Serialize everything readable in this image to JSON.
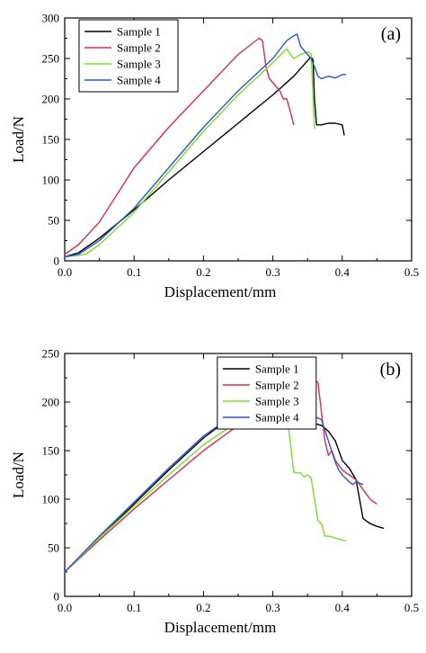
{
  "chart_data": [
    {
      "type": "line",
      "panel_label": "(a)",
      "xlabel": "Displacement/mm",
      "ylabel": "Load/N",
      "xlim": [
        0,
        0.5
      ],
      "ylim": [
        0,
        300
      ],
      "x_ticks": [
        0.0,
        0.1,
        0.2,
        0.3,
        0.4,
        0.5
      ],
      "x_tick_labels": [
        "0.0",
        "0.1",
        "0.2",
        "0.3",
        "0.4",
        "0.5"
      ],
      "y_ticks": [
        0,
        50,
        100,
        150,
        200,
        250,
        300
      ],
      "y_tick_labels": [
        "0",
        "50",
        "100",
        "150",
        "200",
        "250",
        "300"
      ],
      "grid": false,
      "legend_position": "top-left",
      "series": [
        {
          "name": "Sample 1",
          "color": "#000000",
          "points": [
            [
              0,
              5
            ],
            [
              0.02,
              10
            ],
            [
              0.05,
              28
            ],
            [
              0.1,
              63
            ],
            [
              0.15,
              100
            ],
            [
              0.2,
              135
            ],
            [
              0.25,
              170
            ],
            [
              0.3,
              205
            ],
            [
              0.33,
              228
            ],
            [
              0.355,
              252
            ],
            [
              0.358,
              248
            ],
            [
              0.36,
              200
            ],
            [
              0.363,
              168
            ],
            [
              0.37,
              168
            ],
            [
              0.38,
              170
            ],
            [
              0.39,
              170
            ],
            [
              0.4,
              168
            ],
            [
              0.403,
              155
            ]
          ]
        },
        {
          "name": "Sample 2",
          "color": "#e8294b",
          "points": [
            [
              0,
              8
            ],
            [
              0.02,
              20
            ],
            [
              0.05,
              48
            ],
            [
              0.1,
              115
            ],
            [
              0.15,
              165
            ],
            [
              0.2,
              210
            ],
            [
              0.25,
              255
            ],
            [
              0.28,
              275
            ],
            [
              0.285,
              272
            ],
            [
              0.29,
              240
            ],
            [
              0.295,
              225
            ],
            [
              0.305,
              215
            ],
            [
              0.31,
              210
            ],
            [
              0.315,
              200
            ],
            [
              0.32,
              200
            ],
            [
              0.325,
              185
            ],
            [
              0.33,
              168
            ]
          ]
        },
        {
          "name": "Sample 3",
          "color": "#7be020",
          "points": [
            [
              0,
              5
            ],
            [
              0.03,
              8
            ],
            [
              0.05,
              20
            ],
            [
              0.1,
              60
            ],
            [
              0.15,
              110
            ],
            [
              0.2,
              160
            ],
            [
              0.25,
              205
            ],
            [
              0.3,
              245
            ],
            [
              0.32,
              262
            ],
            [
              0.325,
              255
            ],
            [
              0.33,
              250
            ],
            [
              0.34,
              255
            ],
            [
              0.35,
              258
            ],
            [
              0.355,
              256
            ],
            [
              0.358,
              200
            ],
            [
              0.36,
              163
            ]
          ]
        },
        {
          "name": "Sample 4",
          "color": "#2456e0",
          "points": [
            [
              0,
              5
            ],
            [
              0.02,
              8
            ],
            [
              0.05,
              25
            ],
            [
              0.1,
              65
            ],
            [
              0.15,
              115
            ],
            [
              0.2,
              165
            ],
            [
              0.25,
              210
            ],
            [
              0.3,
              250
            ],
            [
              0.32,
              272
            ],
            [
              0.33,
              278
            ],
            [
              0.335,
              280
            ],
            [
              0.34,
              265
            ],
            [
              0.345,
              260
            ],
            [
              0.35,
              255
            ],
            [
              0.355,
              250
            ],
            [
              0.36,
              240
            ],
            [
              0.365,
              228
            ],
            [
              0.37,
              225
            ],
            [
              0.38,
              228
            ],
            [
              0.39,
              226
            ],
            [
              0.4,
              230
            ],
            [
              0.405,
              230
            ]
          ]
        }
      ]
    },
    {
      "type": "line",
      "panel_label": "(b)",
      "xlabel": "Displacement/mm",
      "ylabel": "Load/N",
      "xlim": [
        0,
        0.5
      ],
      "ylim": [
        0,
        250
      ],
      "x_ticks": [
        0.0,
        0.1,
        0.2,
        0.3,
        0.4,
        0.5
      ],
      "x_tick_labels": [
        "0.0",
        "0.1",
        "0.2",
        "0.3",
        "0.4",
        "0.5"
      ],
      "y_ticks": [
        0,
        50,
        100,
        150,
        200,
        250
      ],
      "y_tick_labels": [
        "0",
        "50",
        "100",
        "150",
        "200",
        "250"
      ],
      "grid": false,
      "legend_position": "top-right",
      "series": [
        {
          "name": "Sample 1",
          "color": "#000000",
          "points": [
            [
              0,
              25
            ],
            [
              0.05,
              60
            ],
            [
              0.1,
              95
            ],
            [
              0.15,
              130
            ],
            [
              0.2,
              163
            ],
            [
              0.25,
              190
            ],
            [
              0.28,
              204
            ],
            [
              0.285,
              202
            ],
            [
              0.29,
              190
            ],
            [
              0.295,
              175
            ],
            [
              0.3,
              180
            ],
            [
              0.31,
              185
            ],
            [
              0.32,
              182
            ],
            [
              0.33,
              180
            ],
            [
              0.34,
              183
            ],
            [
              0.35,
              180
            ],
            [
              0.36,
              178
            ],
            [
              0.37,
              176
            ],
            [
              0.38,
              170
            ],
            [
              0.39,
              160
            ],
            [
              0.4,
              140
            ],
            [
              0.41,
              132
            ],
            [
              0.42,
              120
            ],
            [
              0.425,
              100
            ],
            [
              0.43,
              80
            ],
            [
              0.44,
              75
            ],
            [
              0.45,
              72
            ],
            [
              0.46,
              70
            ]
          ]
        },
        {
          "name": "Sample 2",
          "color": "#e8294b",
          "points": [
            [
              0,
              25
            ],
            [
              0.05,
              58
            ],
            [
              0.1,
              90
            ],
            [
              0.15,
              120
            ],
            [
              0.2,
              150
            ],
            [
              0.25,
              176
            ],
            [
              0.3,
              198
            ],
            [
              0.33,
              212
            ],
            [
              0.35,
              220
            ],
            [
              0.36,
              223
            ],
            [
              0.365,
              220
            ],
            [
              0.37,
              190
            ],
            [
              0.375,
              160
            ],
            [
              0.38,
              145
            ],
            [
              0.385,
              150
            ],
            [
              0.39,
              140
            ],
            [
              0.4,
              130
            ],
            [
              0.41,
              125
            ],
            [
              0.42,
              120
            ],
            [
              0.43,
              110
            ],
            [
              0.44,
              100
            ],
            [
              0.45,
              95
            ]
          ]
        },
        {
          "name": "Sample 3",
          "color": "#7be020",
          "points": [
            [
              0,
              25
            ],
            [
              0.05,
              60
            ],
            [
              0.1,
              93
            ],
            [
              0.15,
              125
            ],
            [
              0.2,
              156
            ],
            [
              0.25,
              180
            ],
            [
              0.28,
              193
            ],
            [
              0.3,
              197
            ],
            [
              0.31,
              200
            ],
            [
              0.315,
              190
            ],
            [
              0.32,
              185
            ],
            [
              0.325,
              160
            ],
            [
              0.33,
              128
            ],
            [
              0.335,
              127
            ],
            [
              0.34,
              127
            ],
            [
              0.345,
              123
            ],
            [
              0.35,
              125
            ],
            [
              0.355,
              122
            ],
            [
              0.36,
              100
            ],
            [
              0.365,
              78
            ],
            [
              0.37,
              75
            ],
            [
              0.375,
              62
            ],
            [
              0.38,
              62
            ],
            [
              0.39,
              60
            ],
            [
              0.4,
              58
            ],
            [
              0.405,
              57
            ]
          ]
        },
        {
          "name": "Sample 4",
          "color": "#2456e0",
          "points": [
            [
              0,
              25
            ],
            [
              0.05,
              62
            ],
            [
              0.1,
              97
            ],
            [
              0.15,
              132
            ],
            [
              0.2,
              165
            ],
            [
              0.25,
              190
            ],
            [
              0.3,
              208
            ],
            [
              0.32,
              218
            ],
            [
              0.33,
              223
            ],
            [
              0.335,
              218
            ],
            [
              0.34,
              200
            ],
            [
              0.345,
              190
            ],
            [
              0.35,
              195
            ],
            [
              0.355,
              190
            ],
            [
              0.36,
              185
            ],
            [
              0.37,
              182
            ],
            [
              0.38,
              160
            ],
            [
              0.39,
              138
            ],
            [
              0.395,
              130
            ],
            [
              0.4,
              125
            ],
            [
              0.41,
              118
            ],
            [
              0.415,
              115
            ],
            [
              0.42,
              118
            ],
            [
              0.43,
              115
            ]
          ]
        }
      ]
    }
  ]
}
